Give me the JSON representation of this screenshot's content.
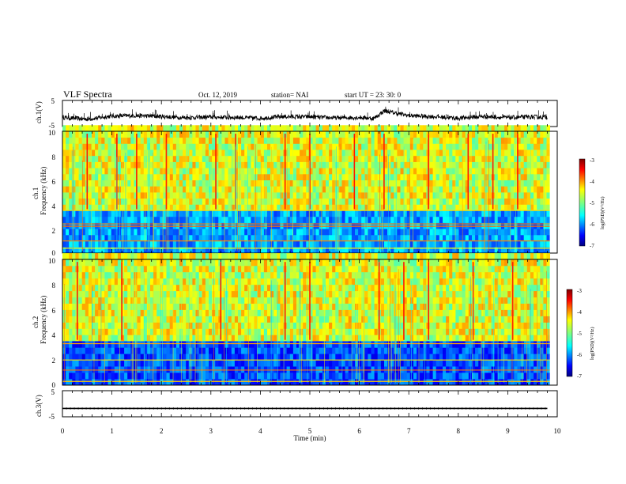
{
  "header": {
    "title": "VLF Spectra",
    "date": "Oct. 12, 2019",
    "station": "station= NAI",
    "start_time": "start  UT  =   23: 30: 0"
  },
  "chart_data": [
    {
      "type": "line",
      "panel": "ch1-waveform",
      "ylabel": "ch.1(V)",
      "yticks": [
        "5",
        "-5"
      ],
      "ylim": [
        -5,
        5
      ],
      "xlim": [
        0,
        10
      ],
      "approx_level_V": -1.5,
      "description_series": "noisy voltage trace around -1 V, x = time (min)",
      "x": [
        0,
        0.5,
        1,
        1.5,
        2,
        2.5,
        3,
        3.5,
        4,
        4.5,
        5,
        5.5,
        6,
        6.3,
        6.5,
        7,
        7.5,
        8,
        8.5,
        9,
        9.5,
        9.8
      ],
      "y": [
        -1.5,
        -2.2,
        -1.0,
        -0.8,
        -1.2,
        -1.6,
        -1.4,
        -1.5,
        -1.8,
        -1.2,
        -1.3,
        -1.7,
        -1.5,
        -1.9,
        1.0,
        -0.8,
        -1.2,
        -1.8,
        -1.1,
        -1.6,
        -1.3,
        -1.4
      ]
    },
    {
      "type": "heatmap",
      "panel": "ch1-spectrogram",
      "ylabel": "ch.1\nFrequency (kHz)",
      "ylabel_line1": "ch.1",
      "ylabel_line2": "Frequency (kHz)",
      "yticks": [
        "0",
        "2",
        "4",
        "6",
        "8",
        "10"
      ],
      "ylim": [
        0,
        10
      ],
      "xlim": [
        0,
        10
      ],
      "colorbar": {
        "label": "log(PSD)(V²/Hz)",
        "ticks": [
          "-3",
          "-4",
          "-5",
          "-6",
          "-7"
        ],
        "range": [
          -7,
          -3
        ]
      },
      "bands_kHz": [
        0.4,
        1.0,
        2.2,
        2.4,
        3.5
      ],
      "strong_impulse_times_min": [
        0.5,
        1.1,
        1.5,
        2.1,
        3.1,
        3.5,
        4.5,
        5.0,
        5.9,
        6.5,
        7.4,
        8.2,
        8.7,
        9.2
      ]
    },
    {
      "type": "heatmap",
      "panel": "ch2-spectrogram",
      "ylabel_line1": "ch.2",
      "ylabel_line2": "Frequency (kHz)",
      "yticks": [
        "0",
        "2",
        "4",
        "6",
        "8",
        "10"
      ],
      "ylim": [
        0,
        10
      ],
      "xlim": [
        0,
        10
      ],
      "colorbar": {
        "label": "log(PSD)(V²/Hz)",
        "ticks": [
          "-3",
          "-4",
          "-5",
          "-6",
          "-7"
        ],
        "range": [
          -7,
          -3
        ]
      },
      "bands_kHz": [
        0.3,
        1.2,
        2.0,
        3.3
      ],
      "strong_impulse_times_min": [
        0.3,
        1.2,
        3.2,
        4.5,
        5.0,
        6.4,
        6.9,
        7.4,
        8.3,
        9.1
      ]
    },
    {
      "type": "line",
      "panel": "ch3-waveform",
      "ylabel": "ch.3(V)",
      "yticks": [
        "5",
        "-5"
      ],
      "ylim": [
        -5,
        5
      ],
      "xlim": [
        0,
        10
      ],
      "x": [
        0,
        9.8
      ],
      "y": [
        -1.8,
        -1.8
      ]
    }
  ],
  "xaxis": {
    "label": "Time  (min)",
    "ticks": [
      "0",
      "1",
      "2",
      "3",
      "4",
      "5",
      "6",
      "7",
      "8",
      "9",
      "10"
    ]
  },
  "colors": {
    "jet_low": "#00007f",
    "jet_mid": "#7fff7f",
    "jet_high": "#7f0000"
  }
}
